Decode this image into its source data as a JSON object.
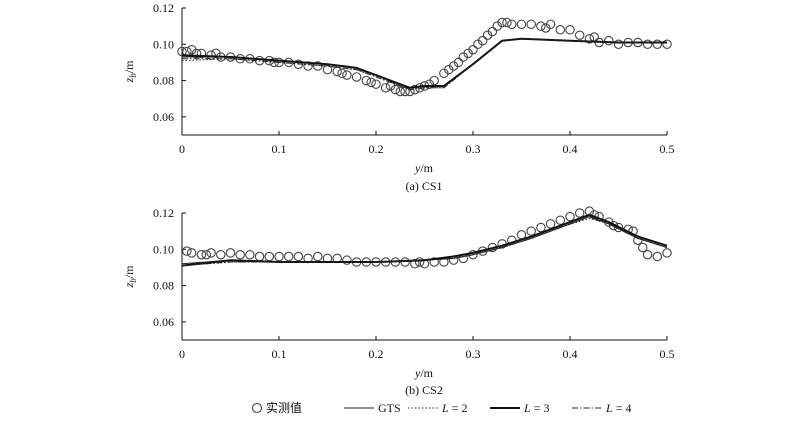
{
  "legend": [
    {
      "label": "实测值",
      "marker": "circle"
    },
    {
      "label": "GTS",
      "line": "solid-thin"
    },
    {
      "label": "L = 2",
      "line": "dotted"
    },
    {
      "label": "L = 3",
      "line": "solid-thick"
    },
    {
      "label": "L = 4",
      "line": "dashdot"
    }
  ],
  "chart_data": [
    {
      "type": "line",
      "caption": "(a) CS1",
      "xlabel": "y/m",
      "ylabel": "z_b/m",
      "xlim": [
        0,
        0.5
      ],
      "ylim": [
        0.05,
        0.12
      ],
      "xticks": [
        "0",
        "0.1",
        "0.2",
        "0.3",
        "0.4",
        "0.5"
      ],
      "yticks": [
        "0.06",
        "0.08",
        "0.10",
        "0.12"
      ],
      "grid": false,
      "series": [
        {
          "name": "实测值",
          "style": "circle",
          "x": [
            0.0,
            0.005,
            0.01,
            0.015,
            0.02,
            0.03,
            0.035,
            0.04,
            0.05,
            0.06,
            0.07,
            0.08,
            0.09,
            0.095,
            0.1,
            0.11,
            0.12,
            0.13,
            0.14,
            0.15,
            0.16,
            0.165,
            0.17,
            0.18,
            0.19,
            0.195,
            0.2,
            0.21,
            0.215,
            0.22,
            0.225,
            0.23,
            0.235,
            0.24,
            0.245,
            0.25,
            0.255,
            0.26,
            0.27,
            0.275,
            0.28,
            0.285,
            0.29,
            0.295,
            0.3,
            0.305,
            0.31,
            0.315,
            0.32,
            0.325,
            0.33,
            0.335,
            0.34,
            0.35,
            0.36,
            0.37,
            0.375,
            0.38,
            0.39,
            0.4,
            0.41,
            0.42,
            0.425,
            0.43,
            0.44,
            0.45,
            0.46,
            0.47,
            0.48,
            0.49,
            0.5
          ],
          "y": [
            0.096,
            0.096,
            0.097,
            0.095,
            0.095,
            0.094,
            0.095,
            0.093,
            0.093,
            0.092,
            0.092,
            0.091,
            0.091,
            0.09,
            0.09,
            0.09,
            0.089,
            0.088,
            0.088,
            0.086,
            0.085,
            0.084,
            0.083,
            0.082,
            0.08,
            0.079,
            0.078,
            0.076,
            0.077,
            0.075,
            0.074,
            0.074,
            0.074,
            0.075,
            0.076,
            0.077,
            0.078,
            0.08,
            0.084,
            0.086,
            0.088,
            0.09,
            0.093,
            0.095,
            0.097,
            0.1,
            0.102,
            0.105,
            0.107,
            0.11,
            0.112,
            0.112,
            0.111,
            0.111,
            0.111,
            0.11,
            0.109,
            0.111,
            0.108,
            0.108,
            0.105,
            0.103,
            0.104,
            0.101,
            0.102,
            0.1,
            0.101,
            0.101,
            0.1,
            0.1,
            0.1
          ]
        },
        {
          "name": "GTS",
          "style": "solid-thin",
          "x": [
            0,
            0.05,
            0.1,
            0.15,
            0.18,
            0.2,
            0.22,
            0.235,
            0.25,
            0.27,
            0.3,
            0.33,
            0.35,
            0.4,
            0.45,
            0.5
          ],
          "y": [
            0.093,
            0.093,
            0.091,
            0.089,
            0.087,
            0.083,
            0.079,
            0.076,
            0.077,
            0.077,
            0.089,
            0.102,
            0.103,
            0.102,
            0.101,
            0.101
          ]
        },
        {
          "name": "L = 2",
          "style": "dotted",
          "x": [
            0,
            0.05,
            0.1,
            0.15,
            0.18,
            0.2,
            0.22,
            0.235,
            0.25,
            0.27,
            0.3,
            0.33,
            0.35,
            0.4,
            0.45,
            0.5
          ],
          "y": [
            0.091,
            0.092,
            0.09,
            0.088,
            0.086,
            0.082,
            0.078,
            0.075,
            0.076,
            0.076,
            0.089,
            0.102,
            0.103,
            0.102,
            0.101,
            0.101
          ]
        },
        {
          "name": "L = 3",
          "style": "solid-thick",
          "x": [
            0,
            0.05,
            0.1,
            0.15,
            0.18,
            0.2,
            0.22,
            0.235,
            0.25,
            0.27,
            0.3,
            0.33,
            0.35,
            0.4,
            0.45,
            0.5
          ],
          "y": [
            0.094,
            0.093,
            0.091,
            0.089,
            0.087,
            0.083,
            0.079,
            0.076,
            0.077,
            0.077,
            0.089,
            0.102,
            0.103,
            0.102,
            0.101,
            0.101
          ]
        },
        {
          "name": "L = 4",
          "style": "dashdot",
          "x": [
            0,
            0.05,
            0.1,
            0.15,
            0.18,
            0.2,
            0.22,
            0.235,
            0.25,
            0.27,
            0.3,
            0.33,
            0.35,
            0.4,
            0.45,
            0.5
          ],
          "y": [
            0.092,
            0.092,
            0.09,
            0.088,
            0.086,
            0.082,
            0.078,
            0.075,
            0.076,
            0.076,
            0.089,
            0.102,
            0.103,
            0.102,
            0.101,
            0.101
          ]
        }
      ]
    },
    {
      "type": "line",
      "caption": "(b) CS2",
      "xlabel": "y/m",
      "ylabel": "z_b/m",
      "xlim": [
        0,
        0.5
      ],
      "ylim": [
        0.05,
        0.12
      ],
      "xticks": [
        "0",
        "0.1",
        "0.2",
        "0.3",
        "0.4",
        "0.5"
      ],
      "yticks": [
        "0.06",
        "0.08",
        "0.10",
        "0.12"
      ],
      "grid": false,
      "series": [
        {
          "name": "实测值",
          "style": "circle",
          "x": [
            0.005,
            0.01,
            0.02,
            0.025,
            0.03,
            0.04,
            0.05,
            0.06,
            0.07,
            0.08,
            0.09,
            0.1,
            0.11,
            0.12,
            0.13,
            0.14,
            0.15,
            0.16,
            0.17,
            0.18,
            0.19,
            0.2,
            0.21,
            0.22,
            0.23,
            0.24,
            0.245,
            0.25,
            0.26,
            0.27,
            0.28,
            0.29,
            0.3,
            0.31,
            0.32,
            0.33,
            0.34,
            0.35,
            0.36,
            0.37,
            0.38,
            0.39,
            0.4,
            0.41,
            0.42,
            0.425,
            0.43,
            0.44,
            0.445,
            0.45,
            0.46,
            0.465,
            0.47,
            0.475,
            0.48,
            0.49,
            0.5
          ],
          "y": [
            0.099,
            0.098,
            0.097,
            0.097,
            0.098,
            0.097,
            0.098,
            0.097,
            0.097,
            0.096,
            0.096,
            0.096,
            0.096,
            0.096,
            0.095,
            0.096,
            0.095,
            0.095,
            0.094,
            0.093,
            0.093,
            0.093,
            0.093,
            0.093,
            0.093,
            0.092,
            0.093,
            0.092,
            0.093,
            0.093,
            0.094,
            0.095,
            0.097,
            0.099,
            0.101,
            0.103,
            0.105,
            0.108,
            0.11,
            0.112,
            0.114,
            0.116,
            0.118,
            0.12,
            0.121,
            0.119,
            0.118,
            0.115,
            0.113,
            0.112,
            0.111,
            0.11,
            0.105,
            0.101,
            0.097,
            0.096,
            0.098
          ]
        },
        {
          "name": "GTS",
          "style": "solid-thin",
          "x": [
            0,
            0.05,
            0.1,
            0.15,
            0.2,
            0.25,
            0.28,
            0.3,
            0.33,
            0.36,
            0.39,
            0.42,
            0.44,
            0.47,
            0.5
          ],
          "y": [
            0.092,
            0.094,
            0.093,
            0.093,
            0.093,
            0.094,
            0.095,
            0.097,
            0.101,
            0.106,
            0.112,
            0.118,
            0.114,
            0.106,
            0.101
          ]
        },
        {
          "name": "L = 2",
          "style": "dotted",
          "x": [
            0,
            0.05,
            0.1,
            0.15,
            0.2,
            0.25,
            0.28,
            0.3,
            0.33,
            0.36,
            0.39,
            0.42,
            0.44,
            0.47,
            0.5
          ],
          "y": [
            0.091,
            0.093,
            0.093,
            0.093,
            0.093,
            0.094,
            0.095,
            0.097,
            0.101,
            0.106,
            0.112,
            0.117,
            0.114,
            0.106,
            0.101
          ]
        },
        {
          "name": "L = 3",
          "style": "solid-thick",
          "x": [
            0,
            0.05,
            0.1,
            0.15,
            0.2,
            0.25,
            0.28,
            0.3,
            0.33,
            0.36,
            0.39,
            0.42,
            0.44,
            0.47,
            0.5
          ],
          "y": [
            0.091,
            0.094,
            0.093,
            0.093,
            0.093,
            0.094,
            0.096,
            0.098,
            0.102,
            0.107,
            0.113,
            0.119,
            0.115,
            0.107,
            0.102
          ]
        },
        {
          "name": "L = 4",
          "style": "dashdot",
          "x": [
            0,
            0.05,
            0.1,
            0.15,
            0.2,
            0.25,
            0.28,
            0.3,
            0.33,
            0.36,
            0.39,
            0.42,
            0.44,
            0.47,
            0.5
          ],
          "y": [
            0.091,
            0.093,
            0.093,
            0.093,
            0.093,
            0.094,
            0.095,
            0.097,
            0.101,
            0.106,
            0.112,
            0.118,
            0.114,
            0.106,
            0.101
          ]
        }
      ]
    }
  ]
}
